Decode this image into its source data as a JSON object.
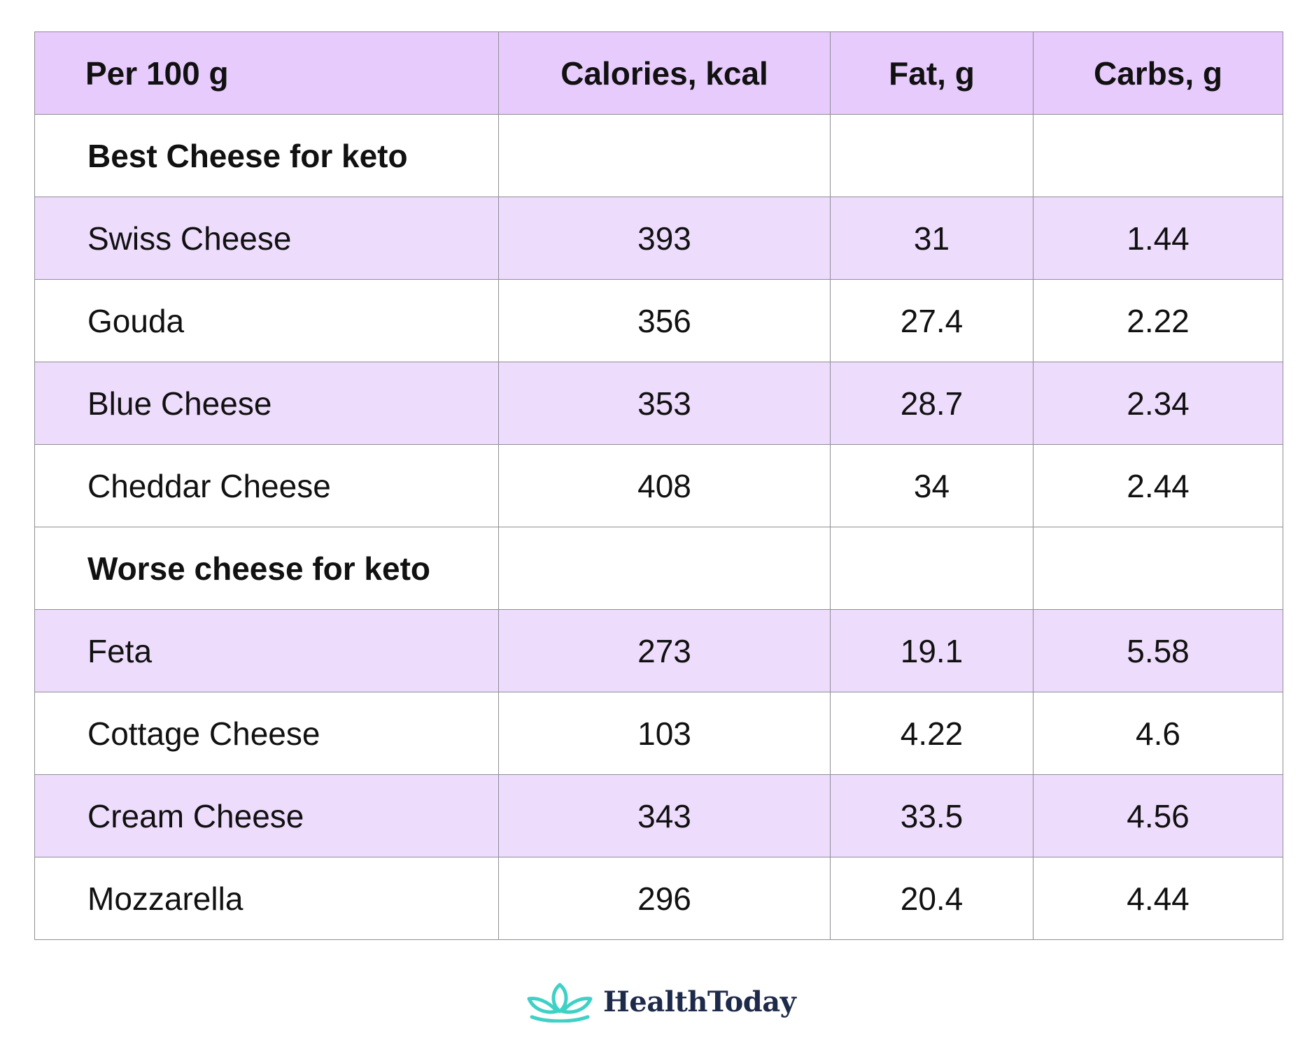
{
  "table": {
    "headers": [
      "Per 100 g",
      "Calories, kcal",
      "Fat, g",
      "Carbs, g"
    ],
    "rows": [
      {
        "type": "section",
        "name": "Best Cheese for keto",
        "calories": "",
        "fat": "",
        "carbs": ""
      },
      {
        "type": "shade",
        "name": "Swiss Cheese",
        "calories": "393",
        "fat": "31",
        "carbs": "1.44"
      },
      {
        "type": "plain",
        "name": "Gouda",
        "calories": "356",
        "fat": "27.4",
        "carbs": "2.22"
      },
      {
        "type": "shade",
        "name": "Blue Cheese",
        "calories": "353",
        "fat": "28.7",
        "carbs": "2.34"
      },
      {
        "type": "plain",
        "name": "Cheddar Cheese",
        "calories": "408",
        "fat": "34",
        "carbs": "2.44"
      },
      {
        "type": "section",
        "name": "Worse cheese for keto",
        "calories": "",
        "fat": "",
        "carbs": ""
      },
      {
        "type": "shade",
        "name": "Feta",
        "calories": "273",
        "fat": "19.1",
        "carbs": "5.58"
      },
      {
        "type": "plain",
        "name": "Cottage Cheese",
        "calories": "103",
        "fat": "4.22",
        "carbs": "4.6"
      },
      {
        "type": "shade",
        "name": "Cream Cheese",
        "calories": "343",
        "fat": "33.5",
        "carbs": "4.56"
      },
      {
        "type": "plain",
        "name": "Mozzarella",
        "calories": "296",
        "fat": "20.4",
        "carbs": "4.44"
      }
    ]
  },
  "brand": {
    "name": "HealthToday",
    "icon": "lotus-icon"
  },
  "colors": {
    "header_bg": "#e7cbfd",
    "shaded_row_bg": "#eedcfd",
    "border": "#8e8e96",
    "brand_teal": "#3fd0c6",
    "brand_navy": "#1d2a4a"
  }
}
